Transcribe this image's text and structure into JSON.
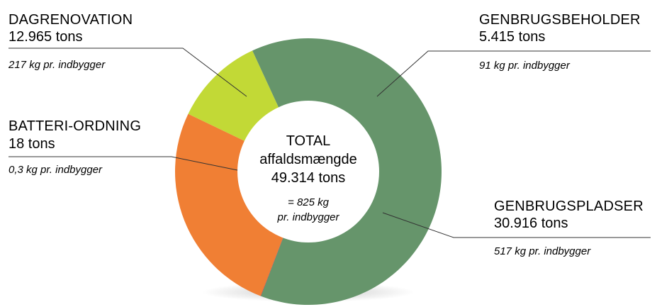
{
  "chart_data": {
    "type": "pie",
    "variant": "donut",
    "categories": [
      "DAGRENOVATION",
      "GENBRUGSBEHOLDER",
      "GENBRUGSPLADSER",
      "BATTERI-ORDNING"
    ],
    "values": [
      12965,
      5415,
      30916,
      18
    ],
    "tons_labels": [
      "12.965 tons",
      "5.415 tons",
      "30.916 tons",
      "18 tons"
    ],
    "per_capita_labels": [
      "217 kg pr. indbygger",
      "91 kg pr. indbygger",
      "517 kg pr. indbygger",
      "0,3 kg pr. indbygger"
    ],
    "colors": [
      "#f07f34",
      "#c2d936",
      "#66956b",
      "#d1232a"
    ],
    "center": {
      "line1": "TOTAL",
      "line2": "affaldsmængde",
      "line3": "49.314 tons",
      "line4": "= 825 kg",
      "line5": "pr. indbygger"
    }
  }
}
